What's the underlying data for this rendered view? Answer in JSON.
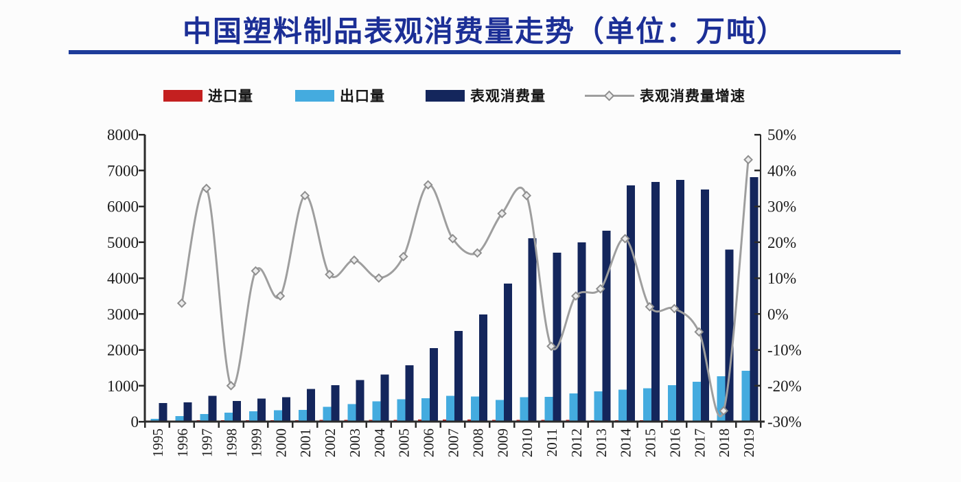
{
  "title": "中国塑料制品表观消费量走势（单位：万吨）",
  "colors": {
    "title": "#1c2f96",
    "rule": "#1e3c9a",
    "imports": "#c42020",
    "exports": "#44abdf",
    "consumption": "#14265c",
    "growth_line": "#9e9e9e",
    "axis": "#2b2b2b"
  },
  "legend": [
    {
      "label": "进口量",
      "marker": "swatch",
      "color": "#c42020"
    },
    {
      "label": "出口量",
      "marker": "swatch",
      "color": "#44abdf"
    },
    {
      "label": "表观消费量",
      "marker": "swatch",
      "color": "#14265c"
    },
    {
      "label": "表观消费量增速",
      "marker": "line-diamond",
      "color": "#9e9e9e"
    }
  ],
  "chart_data": {
    "type": "combo-bar-line",
    "title": "中国塑料制品表观消费量走势（单位：万吨）",
    "categories": [
      "1995",
      "1996",
      "1997",
      "1998",
      "1999",
      "2000",
      "2001",
      "2002",
      "2003",
      "2004",
      "2005",
      "2006",
      "2007",
      "2008",
      "2009",
      "2010",
      "2011",
      "2012",
      "2013",
      "2014",
      "2015",
      "2016",
      "2017",
      "2018",
      "2019"
    ],
    "series": [
      {
        "name": "进口量",
        "type": "bar",
        "axis": "left",
        "color": "#c42020",
        "values": [
          30,
          30,
          35,
          35,
          40,
          40,
          40,
          45,
          45,
          50,
          50,
          55,
          55,
          55,
          50,
          50,
          45,
          45,
          40,
          40,
          35,
          35,
          30,
          30,
          30
        ]
      },
      {
        "name": "出口量",
        "type": "bar",
        "axis": "left",
        "color": "#44abdf",
        "values": [
          80,
          150,
          215,
          250,
          290,
          320,
          330,
          410,
          490,
          560,
          620,
          650,
          720,
          700,
          600,
          680,
          690,
          780,
          840,
          890,
          930,
          1010,
          1110,
          1260,
          1420
        ]
      },
      {
        "name": "表观消费量",
        "type": "bar",
        "axis": "left",
        "color": "#14265c",
        "values": [
          520,
          535,
          720,
          575,
          645,
          680,
          905,
          1010,
          1160,
          1310,
          1570,
          2050,
          2530,
          2990,
          3850,
          5110,
          4710,
          5000,
          5320,
          6580,
          6680,
          6740,
          6470,
          4790,
          6810
        ]
      },
      {
        "name": "表观消费量增速",
        "type": "line",
        "axis": "right",
        "color": "#9e9e9e",
        "values": [
          null,
          3,
          35,
          -20,
          12,
          5,
          33,
          11,
          15,
          10,
          16,
          36,
          21,
          17,
          28,
          33,
          -9,
          5,
          7,
          21,
          2,
          1.5,
          -5,
          -27,
          43
        ]
      }
    ],
    "left_axis": {
      "min": 0,
      "max": 8000,
      "step": 1000,
      "tick_labels": [
        "8000",
        "7000",
        "6000",
        "5000",
        "4000",
        "3000",
        "2000",
        "1000",
        "0"
      ]
    },
    "right_axis": {
      "min": -30,
      "max": 50,
      "step": 10,
      "tick_labels": [
        "50%",
        "40%",
        "30%",
        "20%",
        "10%",
        "0%",
        "-10%",
        "-20%",
        "-30%"
      ]
    },
    "grid": false,
    "legend_position": "top"
  }
}
